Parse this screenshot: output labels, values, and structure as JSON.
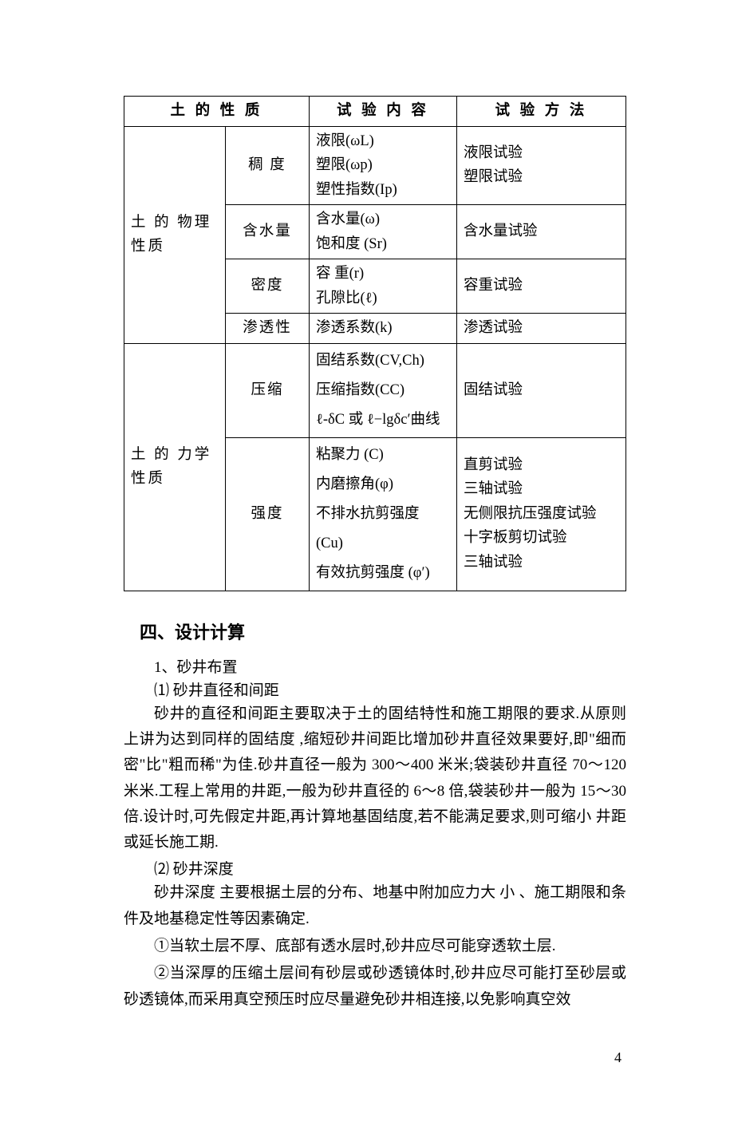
{
  "table": {
    "headers": [
      "土 的 性 质",
      "试 验 内 容",
      "试 验 方 法"
    ],
    "group1": {
      "label": "土 的 物理性质",
      "rows": [
        {
          "sub": "稠 度",
          "content": "液限(ωL)\n塑限(ωp)\n塑性指数(Ip)",
          "method": "液限试验\n塑限试验"
        },
        {
          "sub": "含水量",
          "content": "含水量(ω)\n饱和度 (Sr)",
          "method": "含水量试验"
        },
        {
          "sub": "密度",
          "content": "容 重(r)\n孔隙比(ℓ)",
          "method": "容重试验"
        },
        {
          "sub": "渗透性",
          "content": "渗透系数(k)",
          "method": "渗透试验"
        }
      ]
    },
    "group2": {
      "label": "土 的 力学性质",
      "rows": [
        {
          "sub": "压缩",
          "content": "固结系数(CV,Ch)\n压缩指数(CC)\nℓ-δC 或 ℓ−lgδc′曲线",
          "method": "固结试验"
        },
        {
          "sub": "强度",
          "content": "粘聚力 (C)\n内磨擦角(φ)\n不排水抗剪强度 (Cu)\n有效抗剪强度 (φ′)",
          "method": "直剪试验\n三轴试验\n无侧限抗压强度试验\n十字板剪切试验\n三轴试验"
        }
      ]
    }
  },
  "heading": "四、设计计算",
  "body": {
    "s1": "1、砂井布置",
    "s1a": "⑴ 砂井直径和间距",
    "p1": "砂井的直径和间距主要取决于土的固结特性和施工期限的要求.从原则上讲为达到同样的固结度 ,缩短砂井间距比增加砂井直径效果要好,即\"细而密\"比\"粗而稀\"为佳.砂井直径一般为 300～400 米米;袋装砂井直径 70～120 米米.工程上常用的井距,一般为砂井直径的 6～8 倍,袋装砂井一般为 15～30 倍.设计时,可先假定井距,再计算地基固结度,若不能满足要求,则可缩小 井距或延长施工期.",
    "s1b": "⑵ 砂井深度",
    "p2": "砂井深度 主要根据土层的分布、地基中附加应力大 小 、施工期限和条件及地基稳定性等因素确定.",
    "li1": "①当软土层不厚、底部有透水层时,砂井应尽可能穿透软土层.",
    "li2": "②当深厚的压缩土层间有砂层或砂透镜体时,砂井应尽可能打至砂层或砂透镜体,而采用真空预压时应尽量避免砂井相连接,以免影响真空效"
  },
  "pageNumber": "4"
}
